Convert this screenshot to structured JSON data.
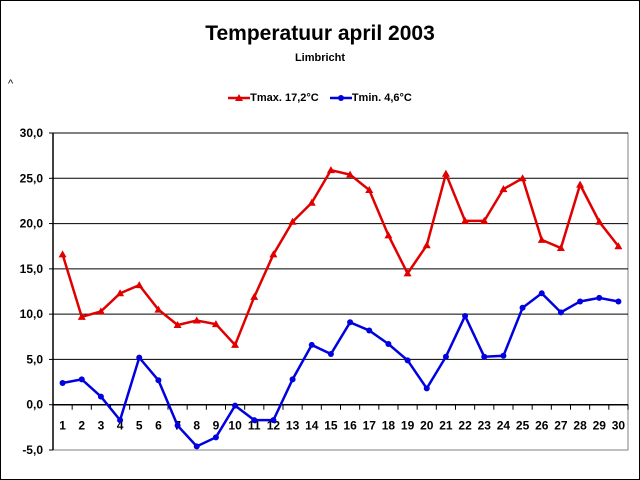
{
  "chart_data": {
    "type": "line",
    "title": "Temperatuur april 2003",
    "subtitle": "Limbricht",
    "stray_mark": "^",
    "xlabel": "",
    "ylabel": "",
    "ylim": [
      -5,
      30
    ],
    "ytick_step": 5,
    "yticks": [
      "30,0",
      "25,0",
      "20,0",
      "15,0",
      "10,0",
      "5,0",
      "0,0",
      "-5,0"
    ],
    "grid": true,
    "legend_position": "top-center",
    "categories": [
      "1",
      "2",
      "3",
      "4",
      "5",
      "6",
      "7",
      "8",
      "9",
      "10",
      "11",
      "12",
      "13",
      "14",
      "15",
      "16",
      "17",
      "18",
      "19",
      "20",
      "21",
      "22",
      "23",
      "24",
      "25",
      "26",
      "27",
      "28",
      "29",
      "30"
    ],
    "series": [
      {
        "name": "Tmax. 17,2°C",
        "color": "#e00000",
        "marker": "triangle",
        "values": [
          16.6,
          9.7,
          10.3,
          12.3,
          13.2,
          10.5,
          8.8,
          9.3,
          8.9,
          6.6,
          11.9,
          16.6,
          20.2,
          22.3,
          25.9,
          25.4,
          23.7,
          18.7,
          14.5,
          17.6,
          25.5,
          20.3,
          20.3,
          23.8,
          25.0,
          18.2,
          17.3,
          24.3,
          20.2,
          17.5
        ]
      },
      {
        "name": "Tmin. 4,6°C",
        "color": "#0000e0",
        "marker": "circle",
        "values": [
          2.4,
          2.8,
          0.9,
          -1.7,
          5.2,
          2.7,
          -2.3,
          -4.6,
          -3.6,
          -0.1,
          -1.7,
          -1.7,
          2.8,
          6.6,
          5.6,
          9.1,
          8.2,
          6.7,
          4.9,
          1.8,
          5.3,
          9.8,
          5.3,
          5.4,
          10.7,
          12.3,
          10.2,
          11.4,
          11.8,
          11.4
        ]
      }
    ]
  }
}
